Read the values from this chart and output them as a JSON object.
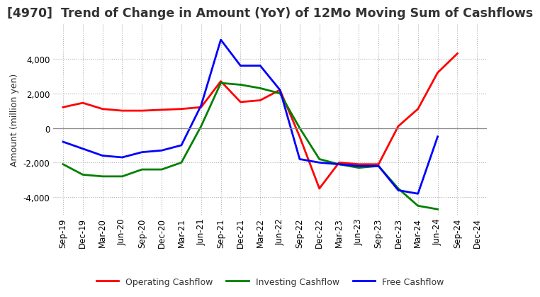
{
  "title": "[4970]  Trend of Change in Amount (YoY) of 12Mo Moving Sum of Cashflows",
  "ylabel": "Amount (million yen)",
  "x_labels": [
    "Sep-19",
    "Dec-19",
    "Mar-20",
    "Jun-20",
    "Sep-20",
    "Dec-20",
    "Mar-21",
    "Jun-21",
    "Sep-21",
    "Dec-21",
    "Mar-22",
    "Jun-22",
    "Sep-22",
    "Dec-22",
    "Mar-23",
    "Jun-23",
    "Sep-23",
    "Dec-23",
    "Mar-24",
    "Jun-24",
    "Sep-24",
    "Dec-24"
  ],
  "operating": [
    1200,
    1450,
    1100,
    1000,
    1000,
    1050,
    1100,
    1200,
    2700,
    1500,
    1600,
    2200,
    -500,
    -3500,
    -2000,
    -2100,
    -2100,
    100,
    1100,
    3200,
    4300,
    null
  ],
  "investing": [
    -2100,
    -2700,
    -2800,
    -2800,
    -2400,
    -2400,
    -2000,
    100,
    2600,
    2500,
    2300,
    2000,
    0,
    -1800,
    -2100,
    -2300,
    -2200,
    -3500,
    -4500,
    -4700,
    null,
    null
  ],
  "free": [
    -800,
    -1200,
    -1600,
    -1700,
    -1400,
    -1300,
    -1000,
    1300,
    5100,
    3600,
    3600,
    2200,
    -1800,
    -2000,
    -2100,
    -2200,
    -2200,
    -3600,
    -3800,
    -500,
    null,
    null
  ],
  "ylim": [
    -5000,
    6000
  ],
  "yticks": [
    -4000,
    -2000,
    0,
    2000,
    4000
  ],
  "operating_color": "#ff0000",
  "investing_color": "#008000",
  "free_color": "#0000ff",
  "background_color": "#ffffff",
  "grid_color": "#b0b0b0",
  "title_color": "#333333",
  "title_fontsize": 12.5,
  "tick_fontsize": 8.5,
  "ylabel_fontsize": 9,
  "legend_fontsize": 9,
  "line_width": 2.0
}
